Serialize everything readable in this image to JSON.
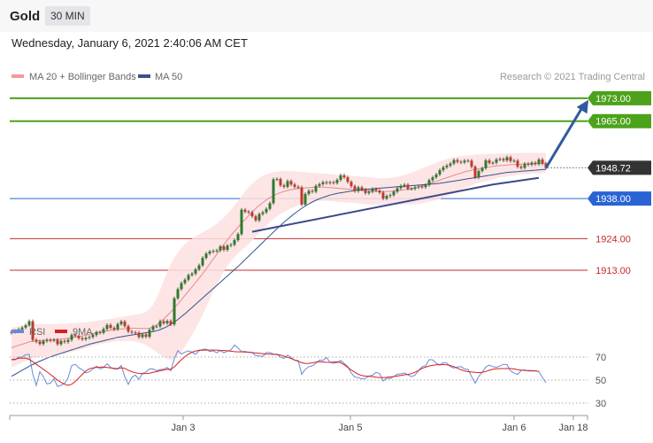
{
  "header": {
    "instrument": "Gold",
    "timeframe": "30 MIN",
    "datetime": "Wednesday, January 6, 2021 2:40:06 AM CET"
  },
  "legend": {
    "ma20": "MA 20 + Bollinger Bands",
    "ma50": "MA 50",
    "credit": "Research © 2021 Trading Central",
    "rsi": "RSI",
    "ma9": "9MA"
  },
  "colors": {
    "resistance": "#4ca21a",
    "support": "#2a63d4",
    "price": "#333333",
    "minor_support": "#c62b2b",
    "bollinger_fill": "#fde0e0",
    "ma20": "#e88a8a",
    "ma50": "#34538e",
    "candle_up": "#2d7a2d",
    "candle_down": "#c0392b",
    "rsi": "#6a8ad6",
    "ma9": "#d62020"
  },
  "chart_data": [
    {
      "type": "line",
      "name": "price-panel",
      "y_range": [
        1896,
        1985
      ],
      "x_labels": [
        "Jan 3",
        "Jan 5",
        "Jan 6",
        "Jan 18"
      ],
      "price": 1948.72,
      "levels": [
        {
          "label": "1973.00",
          "value": 1973.0,
          "kind": "resistance"
        },
        {
          "label": "1965.00",
          "value": 1965.0,
          "kind": "resistance"
        },
        {
          "label": "1938.00",
          "value": 1938.0,
          "kind": "support"
        },
        {
          "label": "1924.00",
          "value": 1924.0,
          "kind": "minor_support"
        },
        {
          "label": "1913.00",
          "value": 1913.0,
          "kind": "minor_support"
        }
      ],
      "close": [
        1891.5,
        1891.8,
        1892.4,
        1893.0,
        1893.8,
        1895.2,
        1888.7,
        1888.1,
        1887.3,
        1888.3,
        1888.7,
        1888.5,
        1888.7,
        1887.2,
        1888.3,
        1888.0,
        1888.7,
        1890.4,
        1890.1,
        1889.3,
        1888.9,
        1889.4,
        1889.7,
        1890.4,
        1891.4,
        1891.2,
        1892.5,
        1893.9,
        1892.9,
        1892.4,
        1894.2,
        1895.1,
        1893.5,
        1891.6,
        1891.3,
        1891.2,
        1889.7,
        1890.6,
        1889.8,
        1892.2,
        1893.4,
        1893.4,
        1895.2,
        1894.5,
        1895.3,
        1894.1,
        1903.2,
        1906.4,
        1908.5,
        1909.7,
        1911.3,
        1911.8,
        1913.3,
        1914.7,
        1917.3,
        1918.8,
        1919.5,
        1919.7,
        1919.9,
        1921.3,
        1920.1,
        1921.6,
        1921.9,
        1923.5,
        1925.6,
        1934.1,
        1933.4,
        1933.2,
        1931.8,
        1930.4,
        1932.6,
        1933.2,
        1934.4,
        1936.4,
        1944.7,
        1944.8,
        1942.6,
        1942.1,
        1944.1,
        1942.9,
        1942.1,
        1941.9,
        1935.9,
        1939.6,
        1940.7,
        1940.4,
        1942.4,
        1943.0,
        1943.7,
        1943.4,
        1943.7,
        1943.4,
        1944.5,
        1946.1,
        1945.4,
        1943.8,
        1942.3,
        1940.6,
        1941.9,
        1941.1,
        1939.9,
        1940.4,
        1941.3,
        1940.8,
        1940.1,
        1938.0,
        1938.9,
        1939.2,
        1940.4,
        1941.6,
        1942.4,
        1942.8,
        1941.4,
        1941.4,
        1941.9,
        1942.2,
        1942.0,
        1942.7,
        1944.4,
        1945.4,
        1946.4,
        1947.9,
        1948.9,
        1949.5,
        1950.2,
        1951.4,
        1950.8,
        1950.6,
        1951.2,
        1951.2,
        1949.1,
        1945.4,
        1947.6,
        1948.6,
        1951.3,
        1950.4,
        1950.5,
        1951.6,
        1951.8,
        1951.3,
        1952.4,
        1951.1,
        1951.2,
        1949.1,
        1948.7,
        1950.1,
        1949.8,
        1950.5,
        1950.0,
        1951.6,
        1950.2,
        1948.7
      ],
      "ma20": [
        1886.0,
        1886.4,
        1886.8,
        1887.2,
        1887.6,
        1888.0,
        1888.2,
        1888.4,
        1888.5,
        1888.5,
        1888.6,
        1888.7,
        1888.8,
        1888.9,
        1889.0,
        1889.1,
        1889.3,
        1889.5,
        1889.7,
        1889.9,
        1890.1,
        1890.3,
        1890.6,
        1890.9,
        1891.2,
        1891.4,
        1891.6,
        1891.8,
        1892.0,
        1892.2,
        1892.4,
        1892.5,
        1892.6,
        1892.7,
        1892.8,
        1892.8,
        1892.7,
        1892.7,
        1892.7,
        1892.8,
        1893.2,
        1893.9,
        1894.9,
        1896.0,
        1897.2,
        1898.4,
        1899.8,
        1901.2,
        1902.7,
        1904.2,
        1905.7,
        1907.2,
        1908.7,
        1910.2,
        1911.8,
        1913.5,
        1915.2,
        1916.9,
        1918.6,
        1920.3,
        1922.0,
        1923.6,
        1925.1,
        1926.6,
        1928.0,
        1929.4,
        1930.7,
        1932.0,
        1933.3,
        1934.5,
        1935.6,
        1936.6,
        1937.5,
        1938.3,
        1939.0,
        1939.6,
        1940.1,
        1940.5,
        1940.8,
        1941.1,
        1941.3,
        1941.5,
        1941.6,
        1941.7,
        1941.8,
        1941.9,
        1942.0,
        1942.0,
        1942.0,
        1941.9,
        1941.8,
        1941.7,
        1941.6,
        1941.5,
        1941.4,
        1941.3,
        1941.2,
        1941.1,
        1941.0,
        1940.9,
        1940.8,
        1940.7,
        1940.6,
        1940.5,
        1940.4,
        1940.4,
        1940.4,
        1940.5,
        1940.6,
        1940.7,
        1940.9,
        1941.1,
        1941.3,
        1941.5,
        1941.8,
        1942.1,
        1942.4,
        1942.8,
        1943.2,
        1943.6,
        1944.0,
        1944.4,
        1944.9,
        1945.3,
        1945.7,
        1946.1,
        1946.5,
        1946.9,
        1947.3,
        1947.6,
        1947.9,
        1948.2,
        1948.4,
        1948.6,
        1948.8,
        1949.0,
        1949.2,
        1949.4,
        1949.5,
        1949.6,
        1949.7,
        1949.8,
        1949.9,
        1950.0,
        1950.0,
        1950.1,
        1950.1,
        1950.2,
        1950.2,
        1950.2,
        1950.3,
        1950.3
      ],
      "bb_upper": [
        1893.0,
        1893.2,
        1893.4,
        1893.6,
        1893.8,
        1894.0,
        1894.1,
        1894.2,
        1894.2,
        1894.2,
        1894.2,
        1894.2,
        1894.2,
        1894.2,
        1894.2,
        1894.3,
        1894.4,
        1894.5,
        1894.6,
        1894.7,
        1894.8,
        1894.9,
        1895.0,
        1895.2,
        1895.4,
        1895.5,
        1895.7,
        1895.9,
        1896.1,
        1896.3,
        1896.5,
        1896.7,
        1896.9,
        1897.1,
        1897.3,
        1897.5,
        1897.7,
        1898.0,
        1898.5,
        1899.4,
        1901.0,
        1903.3,
        1906.2,
        1909.3,
        1912.4,
        1915.1,
        1917.4,
        1919.3,
        1920.8,
        1922.1,
        1923.1,
        1924.0,
        1924.8,
        1925.5,
        1926.2,
        1926.9,
        1927.6,
        1928.4,
        1929.3,
        1930.3,
        1931.4,
        1932.7,
        1934.1,
        1935.6,
        1937.2,
        1938.8,
        1940.4,
        1941.9,
        1943.2,
        1944.3,
        1945.2,
        1945.9,
        1946.5,
        1946.9,
        1947.2,
        1947.4,
        1947.5,
        1947.6,
        1947.6,
        1947.6,
        1947.5,
        1947.4,
        1947.3,
        1947.2,
        1947.1,
        1947.0,
        1946.9,
        1946.8,
        1946.7,
        1946.6,
        1946.5,
        1946.4,
        1946.3,
        1946.2,
        1946.1,
        1946.0,
        1945.9,
        1945.8,
        1945.7,
        1945.6,
        1945.5,
        1945.4,
        1945.3,
        1945.2,
        1945.1,
        1945.1,
        1945.1,
        1945.2,
        1945.4,
        1945.6,
        1945.9,
        1946.2,
        1946.6,
        1947.0,
        1947.5,
        1948.0,
        1948.5,
        1949.0,
        1949.5,
        1950.0,
        1950.5,
        1951.0,
        1951.4,
        1951.8,
        1952.1,
        1952.4,
        1952.6,
        1952.8,
        1953.0,
        1953.1,
        1953.2,
        1953.3,
        1953.4,
        1953.5,
        1953.5,
        1953.6,
        1953.6,
        1953.7,
        1953.7,
        1953.7,
        1953.8,
        1953.8,
        1953.8,
        1953.8,
        1953.9,
        1953.9,
        1953.9,
        1953.9,
        1953.9,
        1953.9,
        1953.9,
        1953.9
      ],
      "bb_lower": [
        1879.0,
        1879.6,
        1880.2,
        1880.8,
        1881.4,
        1882.0,
        1882.3,
        1882.6,
        1882.8,
        1882.8,
        1883.0,
        1883.2,
        1883.4,
        1883.6,
        1883.8,
        1883.9,
        1884.2,
        1884.5,
        1884.8,
        1885.1,
        1885.4,
        1885.7,
        1886.2,
        1886.6,
        1887.0,
        1887.3,
        1887.5,
        1887.7,
        1887.9,
        1888.1,
        1888.3,
        1888.3,
        1888.3,
        1888.3,
        1888.3,
        1888.1,
        1887.7,
        1887.4,
        1886.9,
        1886.2,
        1885.4,
        1884.5,
        1883.6,
        1882.7,
        1882.0,
        1881.7,
        1882.2,
        1883.1,
        1884.6,
        1886.3,
        1888.3,
        1890.4,
        1892.6,
        1894.9,
        1897.4,
        1900.1,
        1902.8,
        1905.4,
        1907.9,
        1910.3,
        1912.6,
        1914.5,
        1916.1,
        1917.6,
        1918.8,
        1920.0,
        1921.0,
        1922.1,
        1923.4,
        1924.7,
        1926.0,
        1927.3,
        1928.5,
        1929.7,
        1930.8,
        1931.8,
        1932.7,
        1933.4,
        1934.0,
        1934.6,
        1935.1,
        1935.6,
        1935.9,
        1936.2,
        1936.5,
        1936.8,
        1937.1,
        1937.2,
        1937.3,
        1937.2,
        1937.1,
        1937.0,
        1936.9,
        1936.8,
        1936.7,
        1936.6,
        1936.5,
        1936.4,
        1936.3,
        1936.2,
        1936.1,
        1936.0,
        1935.9,
        1935.8,
        1935.7,
        1935.7,
        1935.7,
        1935.8,
        1935.8,
        1935.8,
        1935.9,
        1936.0,
        1936.0,
        1936.0,
        1936.1,
        1936.2,
        1936.3,
        1936.6,
        1936.9,
        1937.2,
        1937.5,
        1937.8,
        1938.4,
        1938.8,
        1939.3,
        1939.8,
        1940.4,
        1941.0,
        1941.6,
        1942.1,
        1942.6,
        1943.1,
        1943.4,
        1943.7,
        1944.0,
        1944.3,
        1944.7,
        1945.1,
        1945.4,
        1945.5,
        1945.7,
        1945.9,
        1946.1,
        1946.3,
        1946.3,
        1946.5,
        1946.5,
        1946.7,
        1946.7,
        1946.7,
        1946.9,
        1946.9
      ],
      "ma50": [
        1876.0,
        1876.7,
        1877.4,
        1878.1,
        1878.8,
        1879.5,
        1880.1,
        1880.7,
        1881.3,
        1881.8,
        1882.3,
        1882.8,
        1883.2,
        1883.6,
        1884.0,
        1884.4,
        1884.8,
        1885.2,
        1885.6,
        1886.0,
        1886.4,
        1886.8,
        1887.2,
        1887.5,
        1887.8,
        1888.1,
        1888.4,
        1888.7,
        1889.0,
        1889.3,
        1889.6,
        1889.8,
        1890.0,
        1890.2,
        1890.4,
        1890.6,
        1890.8,
        1891.0,
        1891.2,
        1891.4,
        1891.6,
        1891.9,
        1892.3,
        1892.8,
        1893.4,
        1894.1,
        1894.9,
        1895.8,
        1896.8,
        1897.8,
        1898.9,
        1900.0,
        1901.1,
        1902.2,
        1903.3,
        1904.4,
        1905.5,
        1906.6,
        1907.7,
        1908.8,
        1909.9,
        1911.0,
        1912.1,
        1913.2,
        1914.3,
        1915.5,
        1916.7,
        1917.9,
        1919.1,
        1920.3,
        1921.5,
        1922.7,
        1923.9,
        1925.1,
        1926.3,
        1927.5,
        1928.6,
        1929.7,
        1930.8,
        1931.8,
        1932.8,
        1933.7,
        1934.6,
        1935.4,
        1936.1,
        1936.8,
        1937.4,
        1937.9,
        1938.4,
        1938.8,
        1939.2,
        1939.5,
        1939.8,
        1940.0,
        1940.2,
        1940.4,
        1940.6,
        1940.8,
        1941.0,
        1941.1,
        1941.2,
        1941.3,
        1941.4,
        1941.5,
        1941.6,
        1941.7,
        1941.8,
        1941.9,
        1942.0,
        1942.1,
        1942.2,
        1942.3,
        1942.4,
        1942.5,
        1942.6,
        1942.7,
        1942.8,
        1942.9,
        1943.0,
        1943.1,
        1943.2,
        1943.3,
        1943.5,
        1943.7,
        1943.9,
        1944.1,
        1944.3,
        1944.5,
        1944.7,
        1944.9,
        1945.1,
        1945.3,
        1945.5,
        1945.7,
        1945.9,
        1946.1,
        1946.3,
        1946.5,
        1946.7,
        1946.9,
        1947.1,
        1947.2,
        1947.3,
        1947.4,
        1947.5,
        1947.6,
        1947.7,
        1947.8,
        1947.9,
        1948.0,
        1948.1,
        1948.2
      ],
      "annotations": [
        {
          "type": "trendline",
          "from": [
            68,
            1926.4
          ],
          "to": [
            136,
            1942.9
          ]
        },
        {
          "type": "trendline",
          "from": [
            136,
            1942.9
          ],
          "to": [
            149,
            1945.2
          ]
        },
        {
          "type": "arrow",
          "from": [
            151,
            1948.7
          ],
          "to": [
            163,
            1972.4
          ]
        }
      ]
    },
    {
      "type": "line",
      "name": "rsi-panel",
      "y_range": [
        20,
        80
      ],
      "y_ticks": [
        70,
        50,
        30
      ],
      "rsi": [
        67.6,
        67.6,
        69.8,
        70.1,
        72.1,
        72.3,
        55.4,
        45.4,
        57.2,
        52.9,
        46.7,
        47.3,
        51.1,
        44.5,
        45.5,
        47.2,
        52.0,
        62.6,
        63.7,
        60.7,
        59.0,
        56.3,
        57.2,
        59.8,
        62.1,
        59.8,
        60.9,
        64.2,
        61.1,
        59.6,
        59.5,
        62.6,
        52.9,
        46.2,
        52.4,
        54.4,
        50.6,
        55.8,
        57.1,
        59.7,
        59.6,
        58.2,
        59.2,
        59.4,
        61.0,
        58.1,
        68.4,
        75.6,
        72.6,
        74.3,
        75.4,
        74.3,
        72.4,
        75.4,
        76.6,
        76.9,
        74.8,
        75.5,
        73.7,
        75.7,
        73.7,
        75.1,
        76.3,
        80.4,
        77.9,
        74.7,
        74.9,
        74.0,
        73.8,
        71.3,
        70.9,
        70.6,
        73.9,
        73.9,
        72.6,
        72.5,
        70.1,
        68.8,
        71.6,
        69.8,
        67.2,
        67.1,
        55.1,
        59.4,
        61.6,
        62.4,
        64.6,
        67.3,
        67.1,
        69.6,
        65.5,
        64.6,
        65.3,
        67.0,
        64.5,
        61.7,
        56.0,
        52.7,
        52.1,
        51.1,
        51.4,
        53.4,
        54.2,
        56.8,
        55.7,
        49.2,
        51.7,
        51.3,
        53.1,
        55.2,
        55.4,
        56.2,
        54.6,
        53.0,
        54.2,
        58.3,
        61.6,
        62.5,
        67.8,
        67.6,
        64.6,
        63.0,
        65.3,
        64.8,
        61.7,
        60.5,
        61.4,
        61.7,
        59.7,
        59.2,
        53.1,
        47.3,
        53.1,
        56.9,
        61.3,
        63.0,
        61.6,
        61.1,
        62.4,
        63.8,
        63.4,
        58.1,
        56.1,
        55.0,
        58.2,
        58.9,
        57.9,
        58.0,
        57.9,
        57.4,
        52.3,
        47.8
      ],
      "ma9": [
        68.0,
        68.0,
        69.0,
        69.0,
        69.0,
        68.0,
        66.0,
        63.7,
        61.6,
        59.4,
        57.2,
        54.9,
        52.5,
        50.0,
        48.0,
        46.4,
        45.5,
        46.4,
        48.8,
        51.8,
        55.0,
        58.0,
        59.8,
        60.6,
        61.0,
        61.2,
        61.4,
        61.0,
        60.6,
        60.2,
        60.1,
        60.7,
        60.2,
        58.6,
        57.3,
        56.4,
        55.8,
        55.6,
        55.7,
        56.0,
        56.7,
        57.4,
        58.1,
        58.8,
        59.4,
        59.3,
        61.5,
        64.6,
        67.7,
        70.3,
        72.6,
        74.2,
        75.2,
        75.9,
        76.0,
        76.1,
        76.1,
        76.1,
        76.1,
        75.8,
        75.7,
        75.5,
        75.1,
        74.7,
        74.5,
        74.5,
        74.3,
        74.3,
        73.9,
        73.5,
        73.3,
        73.0,
        72.6,
        72.5,
        72.3,
        72.2,
        71.8,
        70.8,
        69.8,
        68.8,
        67.4,
        66.3,
        65.1,
        64.4,
        64.5,
        65.0,
        65.6,
        65.9,
        65.7,
        65.5,
        65.4,
        65.7,
        65.8,
        65.1,
        63.3,
        61.0,
        58.8,
        56.8,
        55.0,
        54.0,
        53.4,
        53.4,
        53.0,
        52.5,
        52.2,
        52.2,
        52.4,
        52.8,
        53.1,
        53.5,
        54.0,
        54.6,
        54.9,
        55.6,
        56.8,
        58.3,
        60.2,
        61.2,
        62.3,
        62.8,
        63.2,
        63.4,
        63.5,
        63.2,
        62.7,
        61.7,
        60.3,
        58.9,
        58.0,
        57.3,
        57.0,
        56.7,
        56.5,
        56.8,
        57.5,
        58.5,
        59.4,
        59.8,
        60.0,
        60.0,
        60.0,
        60.0,
        59.7,
        59.1,
        58.6,
        58.4,
        58.2,
        58.2,
        58.0,
        57.6
      ]
    }
  ]
}
